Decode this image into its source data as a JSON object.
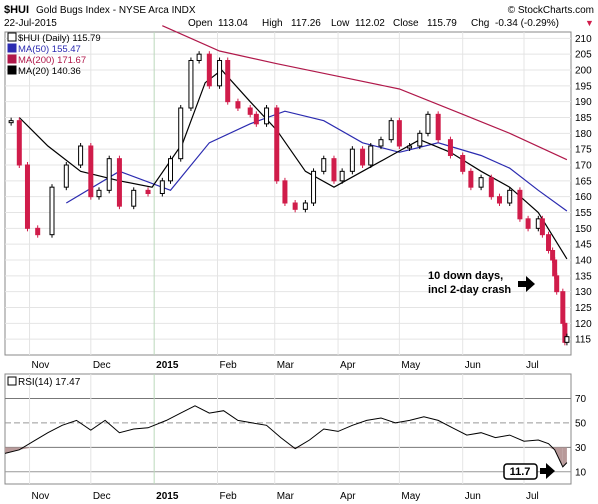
{
  "header": {
    "symbol": "$HUI",
    "name": "Gold Bugs Index - NYSE Arca INDX",
    "brand": "© StockCharts.com",
    "date": "22-Jul-2015",
    "open_label": "Open",
    "open": "113.04",
    "high_label": "High",
    "high": "117.26",
    "low_label": "Low",
    "low": "112.02",
    "close_label": "Close",
    "close": "115.79",
    "chg_label": "Chg",
    "chg": "-0.34 (-0.29%)",
    "chg_arrow": "▼"
  },
  "legend": [
    {
      "label": "$HUI (Daily) 115.79",
      "color": "#000000"
    },
    {
      "label": "MA(50) 155.47",
      "color": "#2b2bb0"
    },
    {
      "label": "MA(200) 171.67",
      "color": "#b0184a"
    },
    {
      "label": "MA(20) 140.36",
      "color": "#000000"
    }
  ],
  "annotation": {
    "line1": "10 down days,",
    "line2": "incl 2-day crash"
  },
  "rsi_panel": {
    "title": "RSI(14) 17.47",
    "badge": "11.7",
    "levels": [
      70,
      50,
      30,
      10
    ]
  },
  "colors": {
    "up": "#000000",
    "down": "#d01c4a",
    "ma50": "#2b2bb0",
    "ma200": "#b0184a",
    "ma20": "#000000",
    "rsi": "#000000"
  },
  "chart_data": [
    {
      "type": "candlestick",
      "title": "$HUI (Daily) 115.79",
      "x_tick_labels": [
        "Nov",
        "Dec",
        "2015",
        "Feb",
        "Mar",
        "Apr",
        "May",
        "Jun",
        "Jul"
      ],
      "y_tick_labels": [
        115,
        120,
        125,
        130,
        135,
        140,
        145,
        150,
        155,
        160,
        165,
        170,
        175,
        180,
        185,
        190,
        195,
        200,
        205,
        210
      ],
      "ylim": [
        110,
        212
      ],
      "grid": true,
      "series": [
        {
          "name": "$HUI",
          "kind": "price",
          "points": [
            {
              "date": "2014-10-23",
              "value": 184
            },
            {
              "date": "2014-10-27",
              "value": 170
            },
            {
              "date": "2014-10-31",
              "value": 150
            },
            {
              "date": "2014-11-05",
              "value": 148
            },
            {
              "date": "2014-11-12",
              "value": 163
            },
            {
              "date": "2014-11-19",
              "value": 170
            },
            {
              "date": "2014-11-26",
              "value": 176
            },
            {
              "date": "2014-12-01",
              "value": 160
            },
            {
              "date": "2014-12-05",
              "value": 162
            },
            {
              "date": "2014-12-10",
              "value": 172
            },
            {
              "date": "2014-12-15",
              "value": 157
            },
            {
              "date": "2014-12-22",
              "value": 162
            },
            {
              "date": "2014-12-29",
              "value": 161
            },
            {
              "date": "2015-01-05",
              "value": 165
            },
            {
              "date": "2015-01-09",
              "value": 172
            },
            {
              "date": "2015-01-14",
              "value": 188
            },
            {
              "date": "2015-01-19",
              "value": 203
            },
            {
              "date": "2015-01-23",
              "value": 205
            },
            {
              "date": "2015-01-28",
              "value": 195
            },
            {
              "date": "2015-02-02",
              "value": 203
            },
            {
              "date": "2015-02-06",
              "value": 190
            },
            {
              "date": "2015-02-11",
              "value": 188
            },
            {
              "date": "2015-02-17",
              "value": 186
            },
            {
              "date": "2015-02-20",
              "value": 183
            },
            {
              "date": "2015-02-25",
              "value": 188
            },
            {
              "date": "2015-03-02",
              "value": 165
            },
            {
              "date": "2015-03-06",
              "value": 158
            },
            {
              "date": "2015-03-11",
              "value": 156
            },
            {
              "date": "2015-03-16",
              "value": 158
            },
            {
              "date": "2015-03-20",
              "value": 168
            },
            {
              "date": "2015-03-25",
              "value": 172
            },
            {
              "date": "2015-03-30",
              "value": 165
            },
            {
              "date": "2015-04-03",
              "value": 168
            },
            {
              "date": "2015-04-08",
              "value": 175
            },
            {
              "date": "2015-04-13",
              "value": 170
            },
            {
              "date": "2015-04-17",
              "value": 176
            },
            {
              "date": "2015-04-22",
              "value": 178
            },
            {
              "date": "2015-04-27",
              "value": 184
            },
            {
              "date": "2015-05-01",
              "value": 176
            },
            {
              "date": "2015-05-06",
              "value": 176
            },
            {
              "date": "2015-05-11",
              "value": 180
            },
            {
              "date": "2015-05-15",
              "value": 186
            },
            {
              "date": "2015-05-20",
              "value": 178
            },
            {
              "date": "2015-05-26",
              "value": 173
            },
            {
              "date": "2015-06-01",
              "value": 168
            },
            {
              "date": "2015-06-05",
              "value": 163
            },
            {
              "date": "2015-06-10",
              "value": 166
            },
            {
              "date": "2015-06-15",
              "value": 160
            },
            {
              "date": "2015-06-19",
              "value": 158
            },
            {
              "date": "2015-06-24",
              "value": 162
            },
            {
              "date": "2015-06-29",
              "value": 153
            },
            {
              "date": "2015-07-03",
              "value": 150
            },
            {
              "date": "2015-07-08",
              "value": 153
            },
            {
              "date": "2015-07-10",
              "value": 148
            },
            {
              "date": "2015-07-13",
              "value": 143
            },
            {
              "date": "2015-07-15",
              "value": 140
            },
            {
              "date": "2015-07-16",
              "value": 135
            },
            {
              "date": "2015-07-17",
              "value": 130
            },
            {
              "date": "2015-07-20",
              "value": 120
            },
            {
              "date": "2015-07-21",
              "value": 114
            },
            {
              "date": "2015-07-22",
              "value": 115.79
            }
          ]
        },
        {
          "name": "MA(50)",
          "kind": "line",
          "points": [
            {
              "date": "2014-11-19",
              "value": 158
            },
            {
              "date": "2014-12-15",
              "value": 168
            },
            {
              "date": "2015-01-09",
              "value": 162
            },
            {
              "date": "2015-01-28",
              "value": 177
            },
            {
              "date": "2015-02-17",
              "value": 183
            },
            {
              "date": "2015-03-06",
              "value": 187
            },
            {
              "date": "2015-03-25",
              "value": 184
            },
            {
              "date": "2015-04-13",
              "value": 177
            },
            {
              "date": "2015-05-01",
              "value": 174
            },
            {
              "date": "2015-05-20",
              "value": 177
            },
            {
              "date": "2015-06-10",
              "value": 173
            },
            {
              "date": "2015-06-24",
              "value": 169
            },
            {
              "date": "2015-07-08",
              "value": 162
            },
            {
              "date": "2015-07-22",
              "value": 155.47
            }
          ]
        },
        {
          "name": "MA(200)",
          "kind": "line",
          "points": [
            {
              "date": "2015-01-05",
              "value": 214
            },
            {
              "date": "2015-02-02",
              "value": 206
            },
            {
              "date": "2015-03-02",
              "value": 202
            },
            {
              "date": "2015-04-01",
              "value": 198
            },
            {
              "date": "2015-05-01",
              "value": 194
            },
            {
              "date": "2015-06-01",
              "value": 186
            },
            {
              "date": "2015-06-24",
              "value": 180
            },
            {
              "date": "2015-07-22",
              "value": 171.67
            }
          ]
        },
        {
          "name": "MA(20)",
          "kind": "line",
          "points": [
            {
              "date": "2014-10-27",
              "value": 185
            },
            {
              "date": "2014-11-10",
              "value": 176
            },
            {
              "date": "2014-11-26",
              "value": 168
            },
            {
              "date": "2014-12-15",
              "value": 165
            },
            {
              "date": "2014-12-31",
              "value": 163
            },
            {
              "date": "2015-01-15",
              "value": 177
            },
            {
              "date": "2015-01-26",
              "value": 196
            },
            {
              "date": "2015-02-03",
              "value": 200
            },
            {
              "date": "2015-02-17",
              "value": 190
            },
            {
              "date": "2015-03-02",
              "value": 181
            },
            {
              "date": "2015-03-16",
              "value": 168
            },
            {
              "date": "2015-03-30",
              "value": 163
            },
            {
              "date": "2015-04-13",
              "value": 168
            },
            {
              "date": "2015-04-27",
              "value": 173
            },
            {
              "date": "2015-05-11",
              "value": 178
            },
            {
              "date": "2015-05-26",
              "value": 174
            },
            {
              "date": "2015-06-10",
              "value": 168
            },
            {
              "date": "2015-06-24",
              "value": 163
            },
            {
              "date": "2015-07-08",
              "value": 155
            },
            {
              "date": "2015-07-22",
              "value": 140.36
            }
          ]
        }
      ]
    },
    {
      "type": "line",
      "title": "RSI(14) 17.47",
      "x_tick_labels": [
        "Nov",
        "Dec",
        "2015",
        "Feb",
        "Mar",
        "Apr",
        "May",
        "Jun",
        "Jul"
      ],
      "y_tick_labels": [
        10,
        30,
        50,
        70
      ],
      "ylim": [
        0,
        90
      ],
      "series": [
        {
          "name": "RSI(14)",
          "points": [
            {
              "date": "2014-10-20",
              "value": 25
            },
            {
              "date": "2014-10-27",
              "value": 28
            },
            {
              "date": "2014-11-03",
              "value": 35
            },
            {
              "date": "2014-11-10",
              "value": 42
            },
            {
              "date": "2014-11-17",
              "value": 48
            },
            {
              "date": "2014-11-24",
              "value": 52
            },
            {
              "date": "2014-12-01",
              "value": 44
            },
            {
              "date": "2014-12-08",
              "value": 52
            },
            {
              "date": "2014-12-15",
              "value": 42
            },
            {
              "date": "2014-12-22",
              "value": 45
            },
            {
              "date": "2014-12-29",
              "value": 46
            },
            {
              "date": "2015-01-07",
              "value": 52
            },
            {
              "date": "2015-01-14",
              "value": 58
            },
            {
              "date": "2015-01-21",
              "value": 64
            },
            {
              "date": "2015-01-28",
              "value": 58
            },
            {
              "date": "2015-02-04",
              "value": 60
            },
            {
              "date": "2015-02-11",
              "value": 52
            },
            {
              "date": "2015-02-18",
              "value": 50
            },
            {
              "date": "2015-02-25",
              "value": 48
            },
            {
              "date": "2015-03-04",
              "value": 38
            },
            {
              "date": "2015-03-11",
              "value": 29
            },
            {
              "date": "2015-03-18",
              "value": 36
            },
            {
              "date": "2015-03-25",
              "value": 45
            },
            {
              "date": "2015-04-01",
              "value": 43
            },
            {
              "date": "2015-04-08",
              "value": 48
            },
            {
              "date": "2015-04-15",
              "value": 52
            },
            {
              "date": "2015-04-22",
              "value": 54
            },
            {
              "date": "2015-04-29",
              "value": 50
            },
            {
              "date": "2015-05-06",
              "value": 52
            },
            {
              "date": "2015-05-13",
              "value": 55
            },
            {
              "date": "2015-05-20",
              "value": 52
            },
            {
              "date": "2015-05-27",
              "value": 46
            },
            {
              "date": "2015-06-03",
              "value": 40
            },
            {
              "date": "2015-06-10",
              "value": 42
            },
            {
              "date": "2015-06-17",
              "value": 38
            },
            {
              "date": "2015-06-24",
              "value": 40
            },
            {
              "date": "2015-07-01",
              "value": 35
            },
            {
              "date": "2015-07-08",
              "value": 36
            },
            {
              "date": "2015-07-13",
              "value": 33
            },
            {
              "date": "2015-07-16",
              "value": 28
            },
            {
              "date": "2015-07-20",
              "value": 14
            },
            {
              "date": "2015-07-22",
              "value": 17.47
            }
          ]
        }
      ]
    }
  ]
}
